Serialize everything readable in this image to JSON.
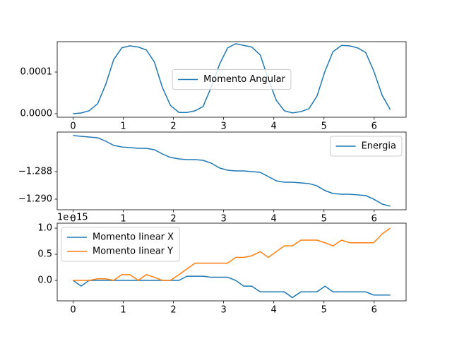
{
  "chart_data": [
    {
      "type": "line",
      "x": [
        0,
        0.16,
        0.32,
        0.49,
        0.65,
        0.81,
        0.97,
        1.13,
        1.3,
        1.46,
        1.62,
        1.78,
        1.94,
        2.11,
        2.27,
        2.43,
        2.59,
        2.75,
        2.92,
        3.08,
        3.24,
        3.4,
        3.56,
        3.73,
        3.89,
        4.05,
        4.21,
        4.37,
        4.54,
        4.7,
        4.86,
        5.02,
        5.18,
        5.35,
        5.51,
        5.67,
        5.83,
        5.99,
        6.16,
        6.32
      ],
      "series": [
        {
          "name": "Momento Angular",
          "color": "#1f77b4",
          "values": [
            0,
            1.7e-06,
            7e-06,
            2.4e-05,
            7e-05,
            0.00013,
            0.000158,
            0.000163,
            0.00016,
            0.000153,
            0.000124,
            6.3e-05,
            2e-05,
            3e-06,
            3e-06,
            7e-06,
            1.7e-05,
            6.3e-05,
            0.000119,
            0.000158,
            0.000168,
            0.000164,
            0.00016,
            0.000141,
            8.3e-05,
            3.2e-05,
            7e-06,
            2e-06,
            5e-06,
            1.2e-05,
            4.2e-05,
            0.000102,
            0.000149,
            0.000164,
            0.000163,
            0.000158,
            0.000147,
            0.000103,
            4.4e-05,
            1e-05
          ]
        }
      ],
      "xlim": [
        -0.316,
        6.636
      ],
      "xticks": [
        0,
        1,
        2,
        3,
        4,
        5,
        6
      ],
      "ylim": [
        -8.5e-06,
        0.0001729
      ],
      "yticks": [
        {
          "value": 0,
          "label": "0.0000"
        },
        {
          "value": 0.0001,
          "label": "0.0001"
        }
      ],
      "legend": "center"
    },
    {
      "type": "line",
      "x": [
        0,
        0.16,
        0.32,
        0.49,
        0.65,
        0.81,
        0.97,
        1.13,
        1.3,
        1.46,
        1.62,
        1.78,
        1.94,
        2.11,
        2.27,
        2.43,
        2.59,
        2.75,
        2.92,
        3.08,
        3.24,
        3.4,
        3.56,
        3.73,
        3.89,
        4.05,
        4.21,
        4.37,
        4.54,
        4.7,
        4.86,
        5.02,
        5.18,
        5.35,
        5.51,
        5.67,
        5.83,
        5.99,
        6.16,
        6.32
      ],
      "series": [
        {
          "name": "Energia",
          "color": "#1f77b4",
          "values": [
            -1.28538,
            -1.28544,
            -1.28549,
            -1.28554,
            -1.28579,
            -1.2861,
            -1.28621,
            -1.28626,
            -1.28631,
            -1.28631,
            -1.28641,
            -1.28672,
            -1.28697,
            -1.28708,
            -1.28713,
            -1.28713,
            -1.28718,
            -1.28738,
            -1.28774,
            -1.2879,
            -1.28795,
            -1.28795,
            -1.288,
            -1.28805,
            -1.28836,
            -1.28867,
            -1.28877,
            -1.28877,
            -1.28882,
            -1.28887,
            -1.28903,
            -1.28938,
            -1.28959,
            -1.28964,
            -1.28964,
            -1.28969,
            -1.28974,
            -1.29,
            -1.29036,
            -1.29051
          ]
        }
      ],
      "xlim": [
        -0.316,
        6.636
      ],
      "xticks": [
        0,
        1,
        2,
        3,
        4,
        5,
        6
      ],
      "ylim": [
        -1.29077,
        -1.28513
      ],
      "yticks": [
        {
          "value": -1.288,
          "label": "−1.288"
        },
        {
          "value": -1.29,
          "label": "−1.290"
        }
      ],
      "legend": "upper right"
    },
    {
      "type": "line",
      "x": [
        0,
        0.16,
        0.32,
        0.49,
        0.65,
        0.81,
        0.97,
        1.13,
        1.3,
        1.46,
        1.62,
        1.78,
        1.94,
        2.11,
        2.27,
        2.43,
        2.59,
        2.75,
        2.92,
        3.08,
        3.24,
        3.4,
        3.56,
        3.73,
        3.89,
        4.05,
        4.21,
        4.37,
        4.54,
        4.7,
        4.86,
        5.02,
        5.18,
        5.35,
        5.51,
        5.67,
        5.83,
        5.99,
        6.16,
        6.32
      ],
      "series": [
        {
          "name": "Momento linear X",
          "color": "#1f77b4",
          "values": [
            0,
            -0.11,
            0,
            0,
            0,
            0,
            0,
            0,
            0,
            0,
            0,
            0,
            0,
            0,
            0.08,
            0.08,
            0.08,
            0.06,
            0.06,
            0.06,
            0,
            -0.11,
            -0.11,
            -0.22,
            -0.22,
            -0.22,
            -0.22,
            -0.33,
            -0.22,
            -0.22,
            -0.22,
            -0.11,
            -0.22,
            -0.22,
            -0.22,
            -0.22,
            -0.22,
            -0.28,
            -0.28,
            -0.28
          ]
        },
        {
          "name": "Momento linear Y",
          "color": "#ff7f0e",
          "values": [
            0,
            0,
            0,
            0.03,
            0.03,
            0,
            0.11,
            0.11,
            0,
            0.11,
            0.06,
            0,
            0,
            0.11,
            0.22,
            0.33,
            0.33,
            0.33,
            0.33,
            0.33,
            0.44,
            0.44,
            0.47,
            0.55,
            0.44,
            0.55,
            0.66,
            0.66,
            0.77,
            0.77,
            0.77,
            0.72,
            0.66,
            0.77,
            0.72,
            0.72,
            0.72,
            0.72,
            0.89,
            1.0
          ]
        }
      ],
      "xlim": [
        -0.316,
        6.636
      ],
      "xticks": [
        0,
        1,
        2,
        3,
        4,
        5,
        6
      ],
      "ylim": [
        -0.392,
        1.095
      ],
      "yticks": [
        {
          "value": 0,
          "label": "0.0"
        },
        0.5,
        {
          "value": 1,
          "label": "1.0"
        }
      ],
      "offset_text": "1e−15",
      "legend": "upper left"
    }
  ]
}
